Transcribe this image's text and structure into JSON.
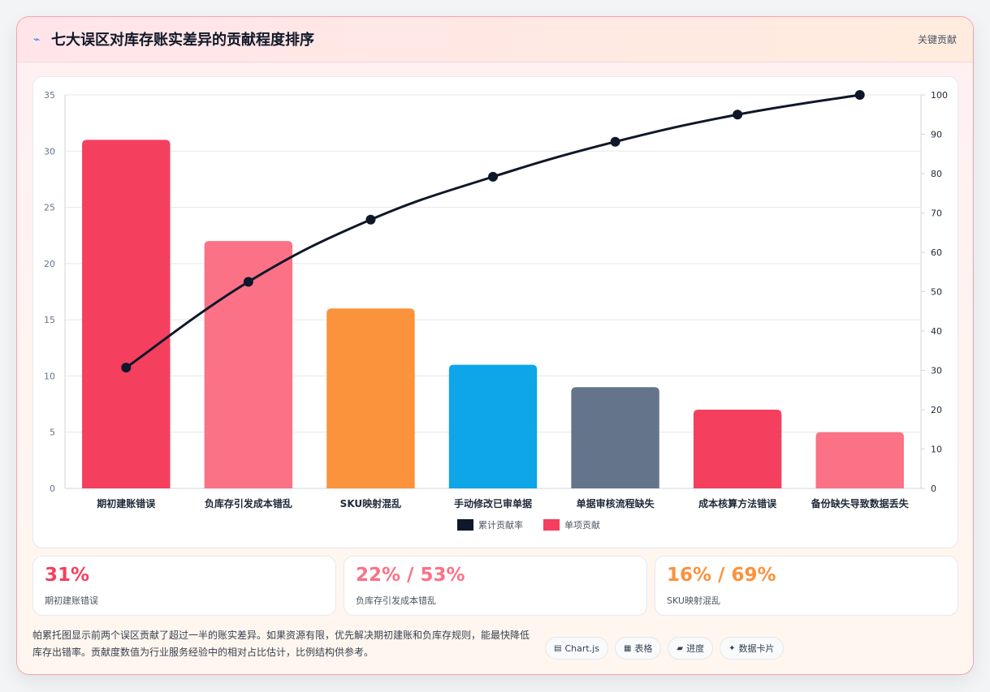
{
  "header": {
    "title_icon": "chart-line-icon",
    "title": "七大误区对库存账实差异的贡献程度排序",
    "tag": "关键贡献"
  },
  "chart_data": {
    "type": "bar",
    "categories": [
      "期初建账错误",
      "负库存引发成本错乱",
      "SKU映射混乱",
      "手动修改已审单据",
      "单据审核流程缺失",
      "成本核算方法错误",
      "备份缺失导致数据丢失"
    ],
    "series": [
      {
        "name": "单项贡献",
        "type": "bar",
        "axis": "left",
        "values": [
          31,
          22,
          16,
          11,
          9,
          7,
          5
        ]
      },
      {
        "name": "累计贡献率",
        "type": "line",
        "axis": "right",
        "values": [
          30.7,
          52.5,
          68.3,
          79.2,
          88.1,
          95.0,
          100
        ]
      }
    ],
    "bar_colors": [
      "#f43f5e",
      "#fb7185",
      "#fb923c",
      "#0ea5e9",
      "#64748b",
      "#f43f5e",
      "#fb7185"
    ],
    "line_color": "#0f172a",
    "ylim_left": [
      0,
      35
    ],
    "yticks_left": [
      "0",
      "5",
      "10",
      "15",
      "20",
      "25",
      "30",
      "35"
    ],
    "ylim_right": [
      0,
      100
    ],
    "yticks_right": [
      "0",
      "10",
      "20",
      "30",
      "40",
      "50",
      "60",
      "70",
      "80",
      "90",
      "100"
    ],
    "legend": [
      {
        "label": "累计贡献率",
        "color": "#0f172a"
      },
      {
        "label": "单项贡献",
        "color": "#f43f5e"
      }
    ],
    "legend_position": "bottom",
    "grid": true
  },
  "stats": [
    {
      "value": "31%",
      "label": "期初建账错误",
      "color": "#f43f5e"
    },
    {
      "value": "22% / 53%",
      "label": "负库存引发成本错乱",
      "color": "#fb7185"
    },
    {
      "value": "16% / 69%",
      "label": "SKU映射混乱",
      "color": "#fb923c"
    }
  ],
  "footnote": "帕累托图显示前两个误区贡献了超过一半的账实差异。如果资源有限，优先解决期初建账和负库存规则，能最快降低库存出错率。贡献度数值为行业服务经验中的相对占比估计，比例结构供参考。",
  "tags": [
    {
      "icon": "chart-icon",
      "glyph": "▤",
      "label": "Chart.js"
    },
    {
      "icon": "table-icon",
      "glyph": "▦",
      "label": "表格"
    },
    {
      "icon": "progress-icon",
      "glyph": "▰",
      "label": "进度"
    },
    {
      "icon": "card-icon",
      "glyph": "✦",
      "label": "数据卡片"
    }
  ]
}
